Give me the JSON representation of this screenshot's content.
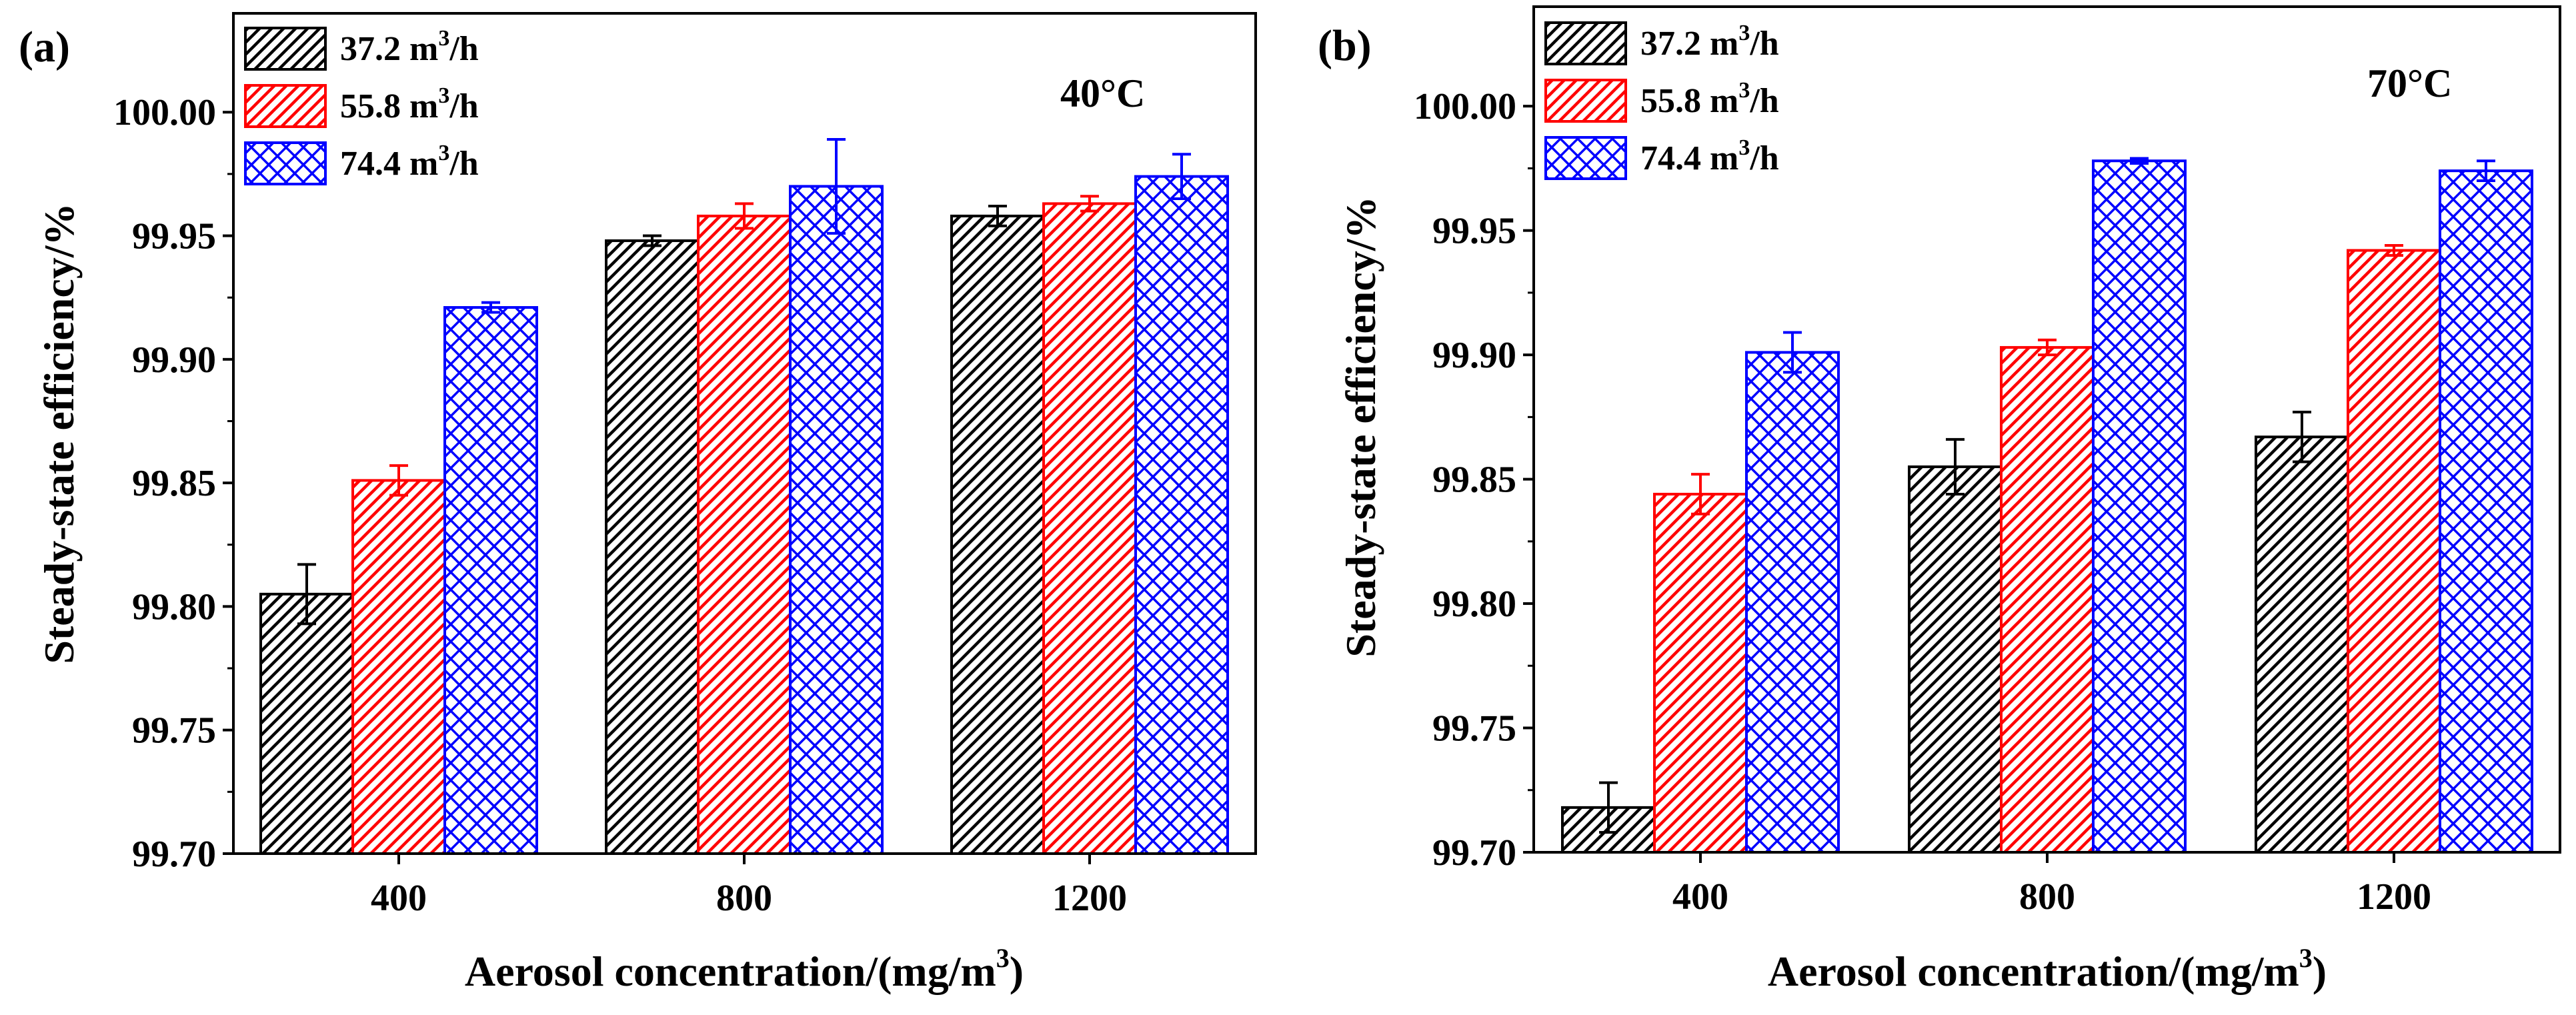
{
  "chart_data": [
    {
      "type": "bar",
      "panel_label": "(a)",
      "annotation": "40°C",
      "xlabel": "Aerosol concentration/(mg/m³)",
      "xlabel_main": "Aerosol concentration/(mg/m",
      "xlabel_sup": "3",
      "xlabel_end": ")",
      "ylabel": "Steady-state efficiency/%",
      "ylim": [
        99.7,
        100.04
      ],
      "yticks": [
        "99.70",
        "99.75",
        "99.80",
        "99.85",
        "99.90",
        "99.95",
        "100.00"
      ],
      "categories": [
        "400",
        "800",
        "1200"
      ],
      "legend_position": "top-left",
      "series": [
        {
          "name": "37.2 m³/h",
          "name_main": "37.2 m",
          "name_sup": "3",
          "name_end": "/h",
          "color": "#000000",
          "pattern": "diag",
          "values": [
            99.805,
            99.948,
            99.958
          ],
          "errors": [
            0.012,
            0.002,
            0.004
          ]
        },
        {
          "name": "55.8 m³/h",
          "name_main": "55.8 m",
          "name_sup": "3",
          "name_end": "/h",
          "color": "#ff0000",
          "pattern": "diag",
          "values": [
            99.851,
            99.958,
            99.963
          ],
          "errors": [
            0.006,
            0.005,
            0.003
          ]
        },
        {
          "name": "74.4 m³/h",
          "name_main": "74.4 m",
          "name_sup": "3",
          "name_end": "/h",
          "color": "#0000ff",
          "pattern": "cross",
          "values": [
            99.921,
            99.97,
            99.974
          ],
          "errors": [
            0.002,
            0.019,
            0.009
          ]
        }
      ]
    },
    {
      "type": "bar",
      "panel_label": "(b)",
      "annotation": "70°C",
      "xlabel": "Aerosol concentration/(mg/m³)",
      "xlabel_main": "Aerosol concentration/(mg/m",
      "xlabel_sup": "3",
      "xlabel_end": ")",
      "ylabel": "Steady-state efficiency/%",
      "ylim": [
        99.7,
        100.04
      ],
      "yticks": [
        "99.70",
        "99.75",
        "99.80",
        "99.85",
        "99.90",
        "99.95",
        "100.00"
      ],
      "categories": [
        "400",
        "800",
        "1200"
      ],
      "legend_position": "top-left",
      "series": [
        {
          "name": "37.2 m³/h",
          "name_main": "37.2 m",
          "name_sup": "3",
          "name_end": "/h",
          "color": "#000000",
          "pattern": "diag",
          "values": [
            99.718,
            99.855,
            99.867
          ],
          "errors": [
            0.01,
            0.011,
            0.01
          ]
        },
        {
          "name": "55.8 m³/h",
          "name_main": "55.8 m",
          "name_sup": "3",
          "name_end": "/h",
          "color": "#ff0000",
          "pattern": "diag",
          "values": [
            99.844,
            99.903,
            99.942
          ],
          "errors": [
            0.008,
            0.003,
            0.002
          ]
        },
        {
          "name": "74.4 m³/h",
          "name_main": "74.4 m",
          "name_sup": "3",
          "name_end": "/h",
          "color": "#0000ff",
          "pattern": "cross",
          "values": [
            99.901,
            99.978,
            99.974
          ],
          "errors": [
            0.008,
            0.001,
            0.004
          ]
        }
      ]
    }
  ]
}
